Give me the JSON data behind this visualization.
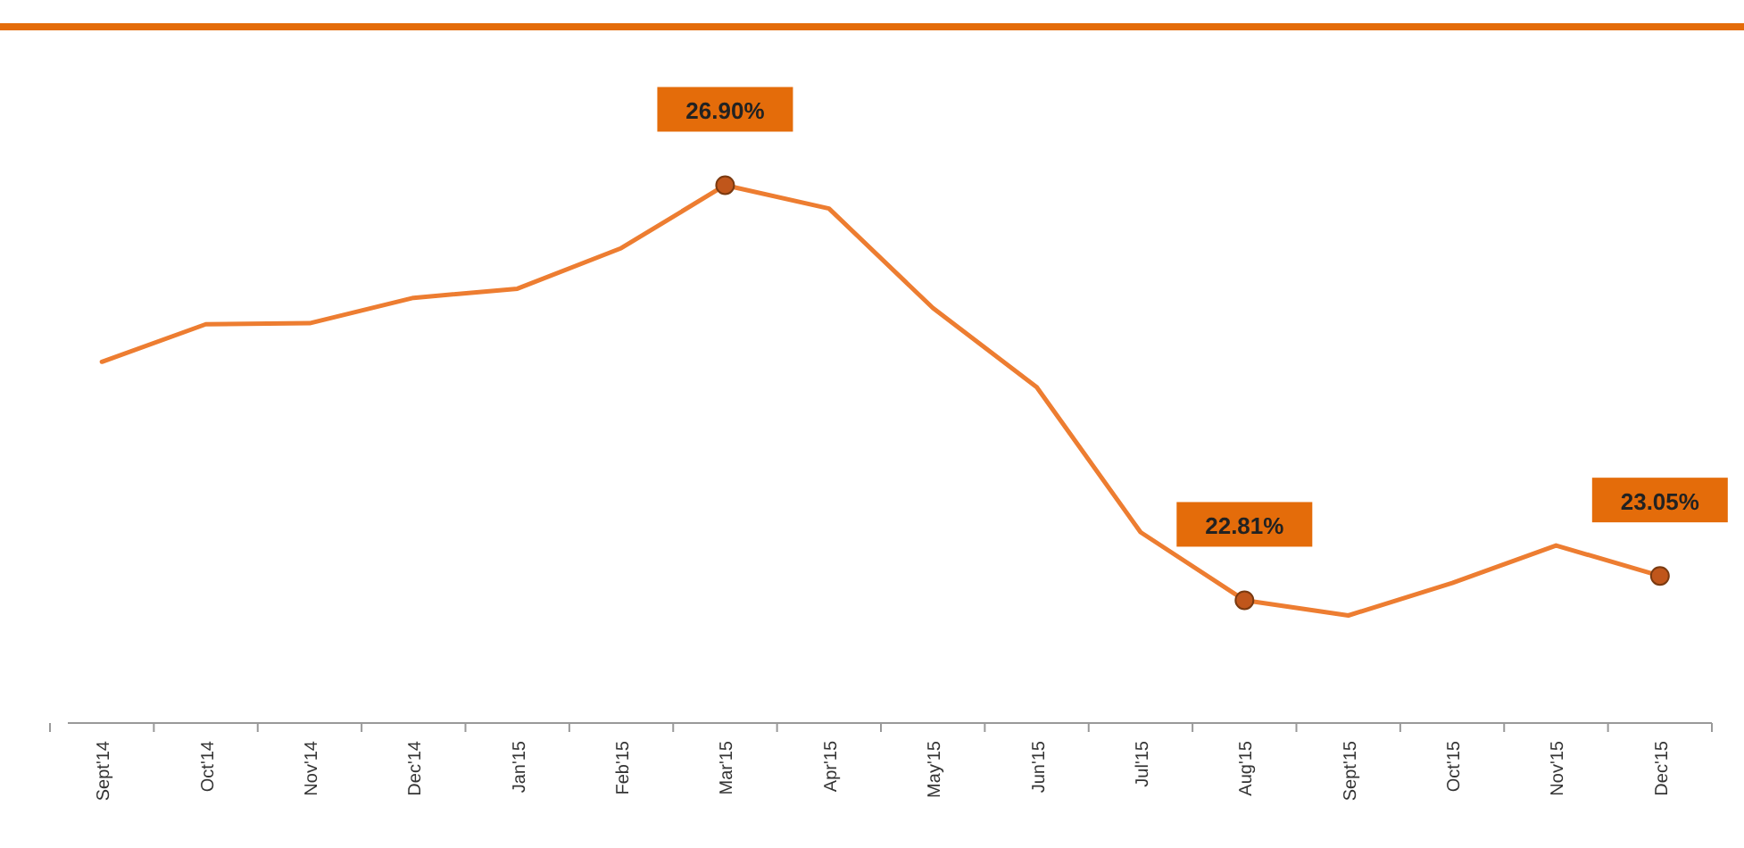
{
  "chart_data": {
    "type": "line",
    "categories": [
      "Sept'14",
      "Oct'14",
      "Nov'14",
      "Dec'14",
      "Jan'15",
      "Feb'15",
      "Mar'15",
      "Apr'15",
      "May'15",
      "Jun'15",
      "Jul'15",
      "Aug'15",
      "Sept'15",
      "Oct'15",
      "Nov'15",
      "Dec'15"
    ],
    "series": [
      {
        "color": "#ed7d31",
        "values": [
          25.16,
          25.53,
          25.54,
          25.79,
          25.88,
          26.28,
          26.9,
          26.67,
          25.69,
          24.91,
          23.48,
          22.81,
          22.66,
          22.98,
          23.35,
          23.05
        ],
        "value_labels": [
          null,
          null,
          null,
          null,
          null,
          null,
          "26.90%",
          null,
          null,
          null,
          null,
          "22.81%",
          null,
          null,
          null,
          "23.05%"
        ]
      }
    ],
    "line_style": "solid",
    "tick_labels": "x"
  }
}
